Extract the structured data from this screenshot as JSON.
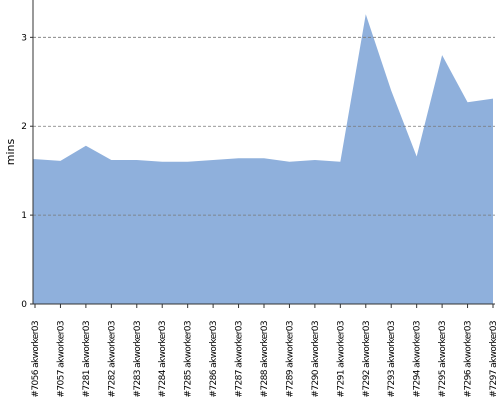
{
  "chart_data": {
    "type": "area",
    "y_label": "mins",
    "categories": [
      "#7056 akworker03",
      "#7057 akworker03",
      "#7281 akworker03",
      "#7282 akworker03",
      "#7283 akworker03",
      "#7284 akworker03",
      "#7285 akworker03",
      "#7286 akworker03",
      "#7287 akworker03",
      "#7288 akworker03",
      "#7289 akworker03",
      "#7290 akworker03",
      "#7291 akworker03",
      "#7292 akworker03",
      "#7293 akworker03",
      "#7294 akworker03",
      "#7295 akworker03",
      "#7296 akworker03",
      "#7297 akworker03"
    ],
    "values": [
      1.63,
      1.61,
      1.78,
      1.62,
      1.62,
      1.6,
      1.6,
      1.62,
      1.64,
      1.64,
      1.6,
      1.62,
      1.6,
      3.26,
      2.4,
      1.66,
      2.8,
      2.27,
      2.31
    ],
    "color": "#8fb0dc",
    "ylim": [
      0,
      3.42
    ],
    "yticks": [
      0,
      1,
      2,
      3
    ],
    "grid": true
  }
}
